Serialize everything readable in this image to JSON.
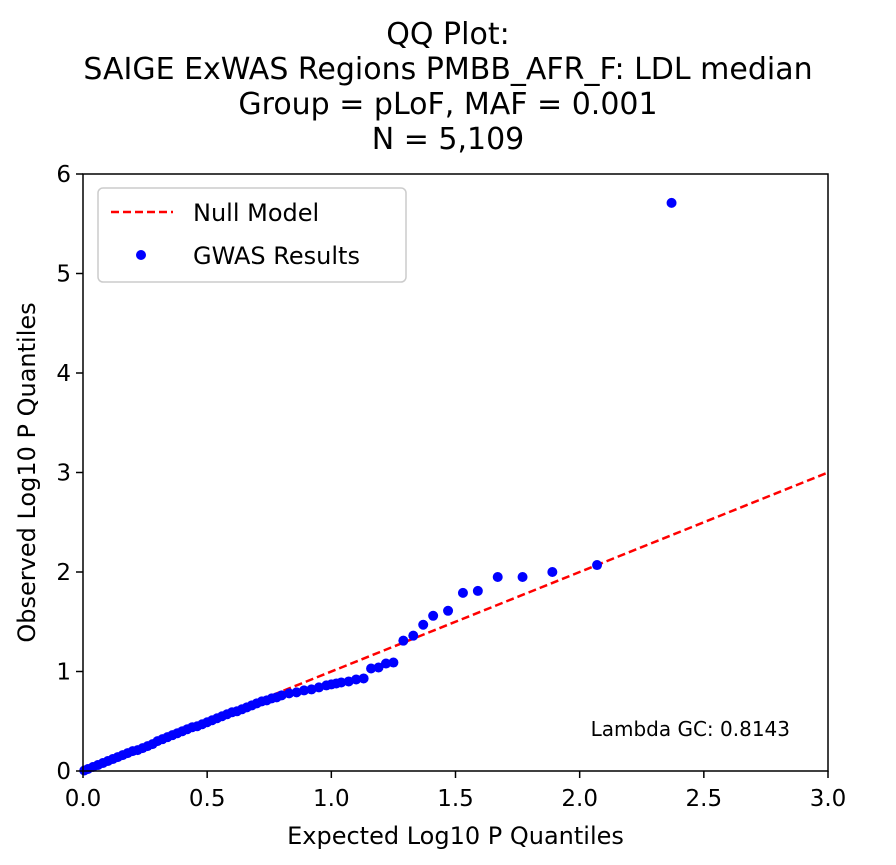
{
  "chart_data": {
    "type": "scatter",
    "title_lines": [
      "QQ Plot:",
      "SAIGE ExWAS Regions PMBB_AFR_F: LDL median",
      "Group = pLoF, MAF = 0.001",
      "N = 5,109"
    ],
    "xlabel": "Expected Log10 P Quantiles",
    "ylabel": "Observed Log10 P Quantiles",
    "xlim": [
      0,
      3
    ],
    "ylim": [
      0,
      6
    ],
    "xticks": [
      {
        "value": 0.0,
        "label": "0.0"
      },
      {
        "value": 0.5,
        "label": "0.5"
      },
      {
        "value": 1.0,
        "label": "1.0"
      },
      {
        "value": 1.5,
        "label": "1.5"
      },
      {
        "value": 2.0,
        "label": "2.0"
      },
      {
        "value": 2.5,
        "label": "2.5"
      },
      {
        "value": 3.0,
        "label": "3.0"
      }
    ],
    "yticks": [
      {
        "value": 0,
        "label": "0"
      },
      {
        "value": 1,
        "label": "1"
      },
      {
        "value": 2,
        "label": "2"
      },
      {
        "value": 3,
        "label": "3"
      },
      {
        "value": 4,
        "label": "4"
      },
      {
        "value": 5,
        "label": "5"
      },
      {
        "value": 6,
        "label": "6"
      }
    ],
    "grid": false,
    "legend_position": "top-left",
    "legend": [
      {
        "label": "Null Model",
        "kind": "dashed-line",
        "color": "#ff0000"
      },
      {
        "label": "GWAS Results",
        "kind": "marker",
        "color": "#0000ff"
      }
    ],
    "null_model": {
      "name": "Null Model",
      "x": [
        0,
        3
      ],
      "y": [
        0,
        3
      ],
      "color": "#ff0000"
    },
    "series": [
      {
        "name": "GWAS Results",
        "color": "#0000ff",
        "x": [
          0.005,
          0.02,
          0.04,
          0.06,
          0.08,
          0.1,
          0.12,
          0.14,
          0.16,
          0.18,
          0.2,
          0.22,
          0.24,
          0.26,
          0.28,
          0.3,
          0.32,
          0.34,
          0.36,
          0.38,
          0.4,
          0.42,
          0.44,
          0.46,
          0.48,
          0.5,
          0.52,
          0.54,
          0.56,
          0.58,
          0.6,
          0.62,
          0.64,
          0.66,
          0.68,
          0.7,
          0.72,
          0.74,
          0.76,
          0.78,
          0.8,
          0.83,
          0.86,
          0.89,
          0.92,
          0.95,
          0.98,
          1.0,
          1.02,
          1.04,
          1.07,
          1.1,
          1.13,
          1.16,
          1.19,
          1.22,
          1.25,
          1.29,
          1.33,
          1.37,
          1.41,
          1.47,
          1.53,
          1.59,
          1.67,
          1.77,
          1.89,
          2.07,
          2.37
        ],
        "y": [
          0.005,
          0.02,
          0.04,
          0.06,
          0.08,
          0.1,
          0.12,
          0.14,
          0.16,
          0.18,
          0.2,
          0.21,
          0.23,
          0.25,
          0.27,
          0.3,
          0.32,
          0.34,
          0.36,
          0.38,
          0.4,
          0.42,
          0.44,
          0.45,
          0.47,
          0.49,
          0.51,
          0.53,
          0.55,
          0.57,
          0.59,
          0.6,
          0.62,
          0.64,
          0.66,
          0.68,
          0.7,
          0.71,
          0.73,
          0.74,
          0.76,
          0.78,
          0.79,
          0.81,
          0.82,
          0.84,
          0.86,
          0.87,
          0.88,
          0.89,
          0.9,
          0.92,
          0.93,
          1.03,
          1.04,
          1.08,
          1.09,
          1.31,
          1.36,
          1.47,
          1.56,
          1.61,
          1.79,
          1.81,
          1.95,
          1.95,
          2.0,
          2.07,
          5.71
        ]
      }
    ],
    "annotation": "Lambda GC: 0.8143"
  }
}
